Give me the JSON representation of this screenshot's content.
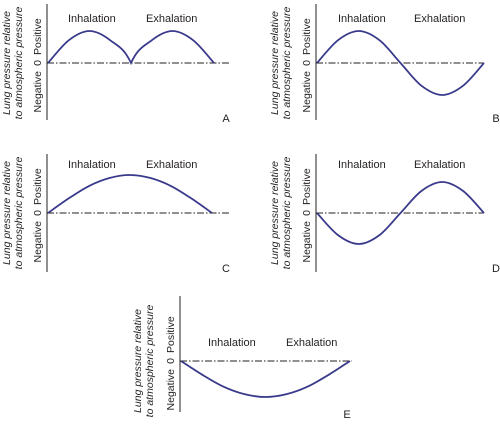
{
  "chart_data": [
    {
      "panel": "A",
      "type": "line",
      "ylabel": [
        "Lung pressure relative",
        "to atmospheric pressure"
      ],
      "y_ticks": {
        "top": "Positive",
        "zero": "0",
        "bottom": "Negative"
      },
      "phases": [
        "Inhalation",
        "Exhalation"
      ],
      "x": [
        0,
        0.125,
        0.25,
        0.375,
        0.5,
        0.625,
        0.75,
        0.875,
        1
      ],
      "y": [
        0,
        0.71,
        1,
        0.71,
        0,
        0.71,
        1,
        0.71,
        0
      ]
    },
    {
      "panel": "B",
      "type": "line",
      "ylabel": [
        "Lung pressure relative",
        "to atmospheric pressure"
      ],
      "y_ticks": {
        "top": "Positive",
        "zero": "0",
        "bottom": "Negative"
      },
      "phases": [
        "Inhalation",
        "Exhalation"
      ],
      "x": [
        0,
        0.125,
        0.25,
        0.375,
        0.5,
        0.625,
        0.75,
        0.875,
        1
      ],
      "y": [
        0,
        0.71,
        1,
        0.71,
        0,
        -0.71,
        -1,
        -0.71,
        0
      ]
    },
    {
      "panel": "C",
      "type": "line",
      "ylabel": [
        "Lung pressure relative",
        "to atmospheric pressure"
      ],
      "y_ticks": {
        "top": "Positive",
        "zero": "0",
        "bottom": "Negative"
      },
      "phases": [
        "Inhalation",
        "Exhalation"
      ],
      "x": [
        0,
        0.125,
        0.25,
        0.375,
        0.5,
        0.625,
        0.75,
        0.875,
        1
      ],
      "y": [
        0,
        0.38,
        0.71,
        0.92,
        1,
        0.92,
        0.71,
        0.38,
        0
      ]
    },
    {
      "panel": "D",
      "type": "line",
      "ylabel": [
        "Lung pressure relative",
        "to atmospheric pressure"
      ],
      "y_ticks": {
        "top": "Positive",
        "zero": "0",
        "bottom": "Negative"
      },
      "phases": [
        "Inhalation",
        "Exhalation"
      ],
      "x": [
        0,
        0.125,
        0.25,
        0.375,
        0.5,
        0.625,
        0.75,
        0.875,
        1
      ],
      "y": [
        0,
        -0.71,
        -1,
        -0.71,
        0,
        0.71,
        1,
        0.71,
        0
      ]
    },
    {
      "panel": "E",
      "type": "line",
      "ylabel": [
        "Lung pressure relative",
        "to atmospheric pressure"
      ],
      "y_ticks": {
        "top": "Positive",
        "zero": "0",
        "bottom": "Negative"
      },
      "phases": [
        "Inhalation",
        "Exhalation"
      ],
      "x": [
        0,
        0.125,
        0.25,
        0.375,
        0.5,
        0.625,
        0.75,
        0.875,
        1
      ],
      "y": [
        0,
        -0.38,
        -0.71,
        -0.92,
        -1,
        -0.92,
        -0.71,
        -0.38,
        0
      ]
    }
  ],
  "colors": {
    "curve": "#3a3a8c",
    "text": "#231f20"
  }
}
